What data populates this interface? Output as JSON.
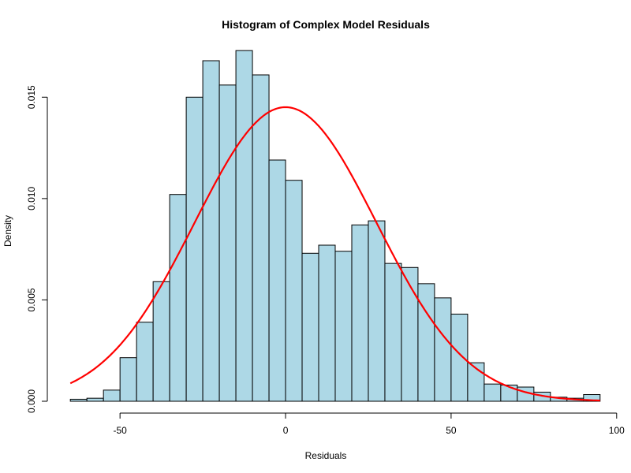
{
  "chart_data": {
    "type": "bar",
    "title": "Histogram of Complex Model Residuals",
    "xlabel": "Residuals",
    "ylabel": "Density",
    "xlim": [
      -66,
      96
    ],
    "ylim": [
      0,
      0.0175
    ],
    "x_ticks": [
      -50,
      0,
      50,
      100
    ],
    "x_tick_labels": [
      "-50",
      "0",
      "50",
      "100"
    ],
    "y_ticks": [
      0,
      0.005,
      0.01,
      0.015
    ],
    "y_tick_labels": [
      "0.000",
      "0.005",
      "0.010",
      "0.015"
    ],
    "bin_width": 5,
    "bin_start": -65,
    "values": [
      0.0001,
      0.00015,
      0.00055,
      0.00215,
      0.0039,
      0.0059,
      0.0102,
      0.015,
      0.0168,
      0.0156,
      0.0173,
      0.0161,
      0.0119,
      0.0109,
      0.0073,
      0.0077,
      0.0074,
      0.0087,
      0.0089,
      0.0068,
      0.0066,
      0.0058,
      0.0051,
      0.0043,
      0.0019,
      0.00085,
      0.0008,
      0.0007,
      0.00045,
      0.0002,
      0.00015,
      0.00033
    ],
    "bar_fill": "#add8e6",
    "bar_stroke": "#000000",
    "overlay_curve": {
      "type": "normal-density",
      "mean": 0,
      "sd": 27.5,
      "color": "#ff0000"
    },
    "grid": false,
    "legend": "none"
  }
}
